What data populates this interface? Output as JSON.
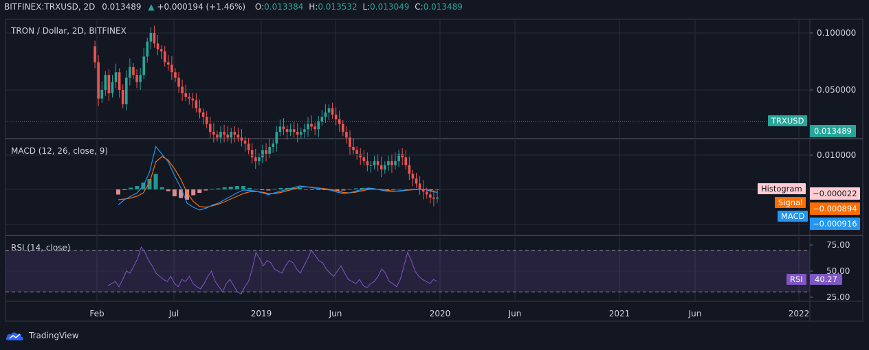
{
  "header": {
    "symbol": "BITFINEX:TRXUSD, 2D",
    "last": "0.013489",
    "change": "+0.000194 (+1.46%)",
    "o_label": "O:",
    "o_value": "0.013384",
    "h_label": "H:",
    "h_value": "0.013532",
    "l_label": "L:",
    "l_value": "0.013049",
    "c_label": "C:",
    "c_value": "0.013489"
  },
  "panes": {
    "price_title": "TRON / Dollar, 2D, BITFINEX",
    "macd_title": "MACD (12, 26, close, 9)",
    "rsi_title": "RSI (14, close)"
  },
  "badges": {
    "symbol_tag": "TRXUSD",
    "price_value": "0.013489",
    "histogram_tag": "Histogram",
    "histogram_value": "−0.000022",
    "signal_tag": "Signal",
    "signal_value": "−0.000894",
    "macd_tag": "MACD",
    "macd_value": "−0.000916",
    "rsi_tag": "RSI",
    "rsi_value": "40.27"
  },
  "footer": {
    "brand": "TradingView"
  },
  "colors": {
    "up": "#26a69a",
    "down": "#ef5350",
    "macd": "#2196f3",
    "signal": "#ff6d00",
    "rsi": "#7e57c2",
    "hist_pos": "#26a69a",
    "hist_neg": "#ef9a9a"
  },
  "chart_data": {
    "type": "candlestick",
    "x_ticks": [
      "Feb",
      "Jul",
      "2019",
      "Jun",
      "2020",
      "Jun",
      "2021",
      "Jun",
      "2022"
    ],
    "price_axis": {
      "ticks": [
        "0.100000",
        "0.050000"
      ],
      "tick_values": [
        0.1,
        0.05
      ],
      "scale": "log",
      "last_value": 0.013489
    },
    "macd_axis": {
      "ticks": [
        "0.010000"
      ],
      "tick_values": [
        0.01
      ]
    },
    "rsi_axis": {
      "ticks": [
        "75.00",
        "50.00",
        "25.00"
      ],
      "tick_values": [
        75,
        50,
        25
      ],
      "band": [
        30,
        70
      ]
    },
    "price_series": [
      0.085,
      0.07,
      0.045,
      0.05,
      0.06,
      0.048,
      0.055,
      0.062,
      0.05,
      0.042,
      0.058,
      0.066,
      0.06,
      0.055,
      0.06,
      0.075,
      0.09,
      0.1,
      0.088,
      0.082,
      0.08,
      0.07,
      0.068,
      0.062,
      0.058,
      0.052,
      0.048,
      0.046,
      0.045,
      0.044,
      0.04,
      0.038,
      0.036,
      0.033,
      0.03,
      0.029,
      0.028,
      0.03,
      0.029,
      0.028,
      0.03,
      0.029,
      0.028,
      0.027,
      0.026,
      0.024,
      0.022,
      0.021,
      0.022,
      0.024,
      0.023,
      0.025,
      0.026,
      0.03,
      0.032,
      0.031,
      0.03,
      0.031,
      0.03,
      0.029,
      0.03,
      0.031,
      0.033,
      0.032,
      0.031,
      0.034,
      0.036,
      0.038,
      0.04,
      0.037,
      0.035,
      0.033,
      0.03,
      0.028,
      0.025,
      0.024,
      0.023,
      0.022,
      0.021,
      0.02,
      0.02,
      0.021,
      0.02,
      0.019,
      0.02,
      0.021,
      0.02,
      0.021,
      0.023,
      0.022,
      0.02,
      0.018,
      0.017,
      0.016,
      0.015,
      0.0145,
      0.014,
      0.0135,
      0.0133,
      0.0135
    ],
    "macd_series": [
      -0.0045,
      -0.003,
      -0.002,
      -0.001,
      0.001,
      0.005,
      0.0125,
      0.0102,
      0.008,
      0.004,
      0.0005,
      -0.004,
      -0.0052,
      -0.006,
      -0.0055,
      -0.0046,
      -0.004,
      -0.003,
      -0.002,
      -0.001,
      -0.0002,
      -0.0003,
      -0.0005,
      -0.001,
      -0.0015,
      -0.001,
      -0.0005,
      0,
      0.0005,
      0.001,
      0.0008,
      0.0005,
      0.0003,
      0,
      -0.0002,
      -0.0008,
      -0.0012,
      -0.001,
      -0.0005,
      0,
      0.0004,
      0.0002,
      -0.0002,
      -0.0005,
      -0.0006,
      -0.0004,
      -0.0002,
      0,
      0.0001,
      0,
      -0.0005,
      -0.0009
    ],
    "signal_series": [
      -0.003,
      -0.0028,
      -0.0025,
      -0.002,
      -0.001,
      0.002,
      0.008,
      0.0096,
      0.0085,
      0.006,
      0.003,
      -0.001,
      -0.0035,
      -0.005,
      -0.0052,
      -0.0048,
      -0.0043,
      -0.0036,
      -0.0028,
      -0.002,
      -0.0012,
      -0.0007,
      -0.0006,
      -0.0008,
      -0.0012,
      -0.0012,
      -0.0009,
      -0.0004,
      0.0001,
      0.0006,
      0.0008,
      0.0006,
      0.0004,
      0.0002,
      0,
      -0.0004,
      -0.0009,
      -0.001,
      -0.0008,
      -0.0004,
      0,
      0.0001,
      0,
      -0.0003,
      -0.0005,
      -0.0005,
      -0.0003,
      -0.0001,
      0,
      0,
      -0.0003,
      -0.0009
    ],
    "rsi_series": [
      36,
      38,
      40,
      35,
      42,
      50,
      48,
      55,
      62,
      73,
      68,
      60,
      55,
      48,
      45,
      42,
      40,
      45,
      38,
      35,
      42,
      40,
      45,
      38,
      35,
      33,
      38,
      45,
      50,
      40,
      35,
      30,
      38,
      42,
      36,
      30,
      28,
      35,
      40,
      52,
      68,
      62,
      55,
      60,
      58,
      52,
      50,
      48,
      55,
      60,
      58,
      52,
      48,
      55,
      62,
      70,
      65,
      60,
      58,
      52,
      48,
      45,
      50,
      55,
      48,
      42,
      40,
      38,
      42,
      36,
      34,
      38,
      40,
      45,
      52,
      48,
      40,
      38,
      35,
      42,
      55,
      68,
      60,
      50,
      45,
      42,
      40,
      38,
      42,
      40
    ]
  }
}
